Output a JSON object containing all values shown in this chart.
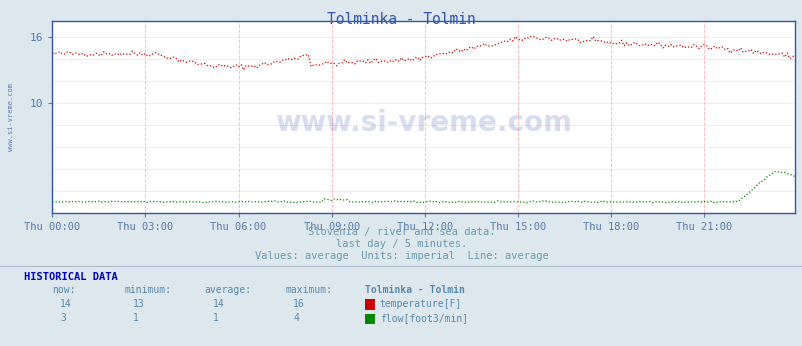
{
  "title": "Tolminka - Tolmin",
  "title_color": "#3355aa",
  "bg_color": "#dde8ee",
  "plot_bg_color": "#ffffff",
  "grid_h_color": "#ffdddd",
  "grid_v_color": "#ffbbbb",
  "tick_color": "#5577aa",
  "yticks": [
    10,
    16
  ],
  "ylim": [
    0,
    17.5
  ],
  "xlim": [
    0,
    287
  ],
  "xtick_positions": [
    0,
    36,
    72,
    108,
    144,
    180,
    216,
    252
  ],
  "xtick_labels": [
    "Thu 00:00",
    "Thu 03:00",
    "Thu 06:00",
    "Thu 09:00",
    "Thu 12:00",
    "Thu 15:00",
    "Thu 18:00",
    "Thu 21:00"
  ],
  "watermark_text": "www.si-vreme.com",
  "watermark_color": "#2244aa",
  "watermark_alpha": 0.18,
  "subtitle1": "Slovenia / river and sea data.",
  "subtitle2": "last day / 5 minutes.",
  "subtitle3": "Values: average  Units: imperial  Line: average",
  "subtitle_color": "#6699aa",
  "temp_color": "#cc0000",
  "flow_color": "#008800",
  "hist_title": "HISTORICAL DATA",
  "col_headers": [
    "now:",
    "minimum:",
    "average:",
    "maximum:",
    "Tolminka - Tolmin"
  ],
  "temp_stats": [
    14,
    13,
    14,
    16
  ],
  "flow_stats": [
    3,
    1,
    1,
    4
  ],
  "temp_label": "temperature[F]",
  "flow_label": "flow[foot3/min]",
  "n_points": 288,
  "left_label": "www.si-vreme.com",
  "left_label_color": "#4466aa",
  "spine_color": "#3355aa"
}
